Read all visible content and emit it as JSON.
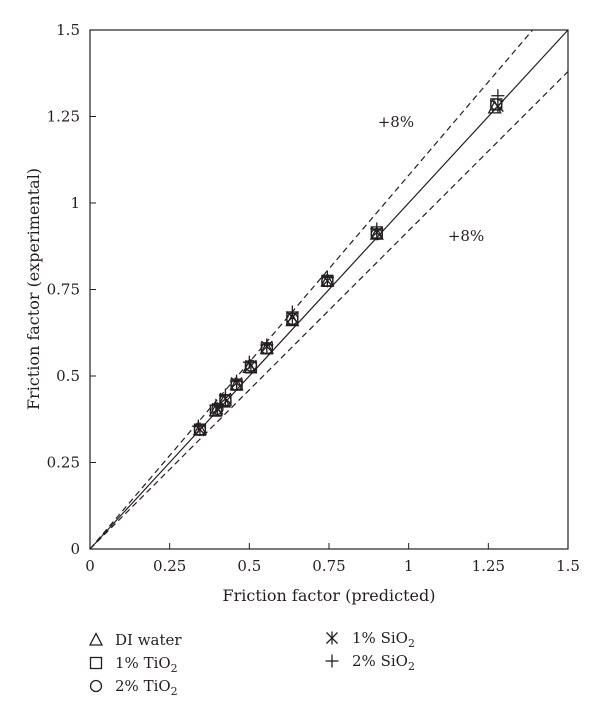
{
  "chart_data": {
    "type": "scatter",
    "xlabel": "Friction factor (predicted)",
    "ylabel": "Friction factor (experimental)",
    "xlim": [
      0,
      1.5
    ],
    "ylim": [
      0,
      1.5
    ],
    "x_ticks": [
      "0",
      "0.25",
      "0.5",
      "0.75",
      "1",
      "1.25",
      "1.5"
    ],
    "y_ticks": [
      "0",
      "0.25",
      "0.5",
      "0.75",
      "1",
      "1.25",
      "1.5"
    ],
    "grid": false,
    "legend_position": "bottom",
    "reference_lines": [
      {
        "kind": "parity",
        "slope": 1.0,
        "style": "solid"
      },
      {
        "kind": "upper",
        "slope": 1.08,
        "style": "dashed",
        "label": "+8%"
      },
      {
        "kind": "lower",
        "slope": 0.92,
        "style": "dashed",
        "label": "+8%"
      }
    ],
    "annotations": [
      {
        "text": "+8%",
        "x": 0.96,
        "y": 1.22
      },
      {
        "text": "+8%",
        "x": 1.18,
        "y": 0.89
      }
    ],
    "series": [
      {
        "name": "DI water",
        "marker": "triangle",
        "x": [
          0.345,
          0.395,
          0.42,
          0.46,
          0.5,
          0.555,
          0.635,
          0.745,
          0.9,
          1.27
        ],
        "y": [
          0.345,
          0.4,
          0.425,
          0.475,
          0.525,
          0.58,
          0.66,
          0.775,
          0.91,
          1.275
        ]
      },
      {
        "name": "1% TiO2",
        "marker": "square",
        "x": [
          0.345,
          0.395,
          0.425,
          0.46,
          0.505,
          0.555,
          0.635,
          0.745,
          0.9,
          1.275
        ],
        "y": [
          0.345,
          0.4,
          0.43,
          0.475,
          0.525,
          0.58,
          0.665,
          0.775,
          0.915,
          1.285
        ]
      },
      {
        "name": "2% TiO2",
        "marker": "circle",
        "x": [
          0.345,
          0.4,
          0.425,
          0.46,
          0.505,
          0.555,
          0.635,
          0.745,
          0.9,
          1.275
        ],
        "y": [
          0.345,
          0.405,
          0.43,
          0.475,
          0.53,
          0.58,
          0.665,
          0.775,
          0.91,
          1.285
        ]
      },
      {
        "name": "1% SiO2",
        "marker": "asterisk",
        "x": [
          0.345,
          0.4,
          0.425,
          0.46,
          0.505,
          0.555,
          0.635,
          0.745,
          0.9,
          1.28
        ],
        "y": [
          0.345,
          0.405,
          0.435,
          0.48,
          0.53,
          0.585,
          0.67,
          0.775,
          0.915,
          1.28
        ]
      },
      {
        "name": "2% SiO2",
        "marker": "plus",
        "x": [
          0.34,
          0.395,
          0.425,
          0.46,
          0.5,
          0.555,
          0.635,
          0.745,
          0.9,
          1.28
        ],
        "y": [
          0.355,
          0.415,
          0.445,
          0.485,
          0.54,
          0.59,
          0.685,
          0.785,
          0.925,
          1.31
        ]
      }
    ]
  },
  "legend": [
    {
      "marker": "triangle",
      "name": "DI water",
      "base": "DI water",
      "sub": ""
    },
    {
      "marker": "square",
      "name": "1% TiO2",
      "base": "1% TiO",
      "sub": "2"
    },
    {
      "marker": "circle",
      "name": "2% TiO2",
      "base": "2% TiO",
      "sub": "2"
    },
    {
      "marker": "asterisk",
      "name": "1% SiO2",
      "base": "1% SiO",
      "sub": "2"
    },
    {
      "marker": "plus",
      "name": "2% SiO2",
      "base": "2% SiO",
      "sub": "2"
    }
  ]
}
